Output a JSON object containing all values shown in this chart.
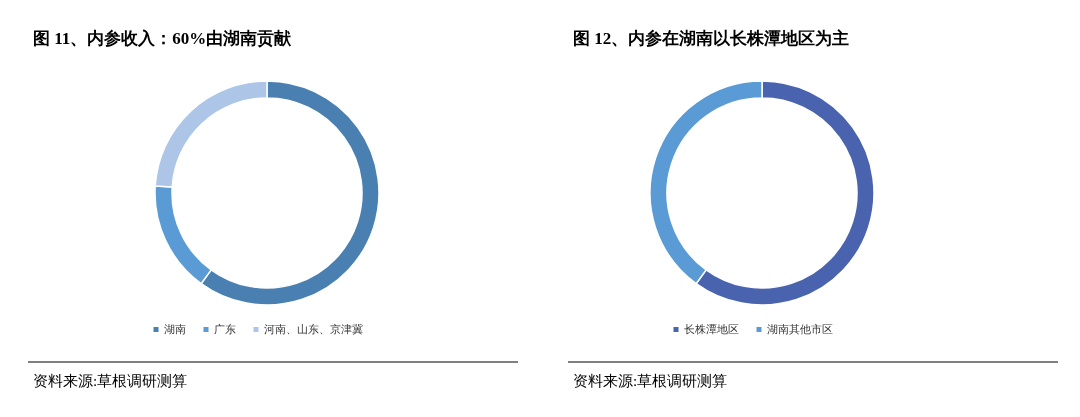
{
  "chart_data": [
    {
      "type": "donut",
      "title": "图 11、内参收入：60%由湖南贡献",
      "categories": [
        "湖南",
        "广东",
        "河南、山东、京津冀"
      ],
      "values": [
        60,
        16,
        24
      ],
      "colors": [
        "#4a7fb2",
        "#5b9bd5",
        "#adc6e7"
      ],
      "legend": "bottom",
      "annotations": [
        "资料来源:草根调研测算"
      ]
    },
    {
      "type": "donut",
      "title": "图 12、内参在湖南以长株潭地区为主",
      "categories": [
        "长株潭地区",
        "湖南其他市区"
      ],
      "values": [
        60,
        40
      ],
      "colors": [
        "#4a63ae",
        "#5b9bd5"
      ],
      "legend": "bottom",
      "annotations": [
        "资料来源:草根调研测算"
      ]
    }
  ]
}
